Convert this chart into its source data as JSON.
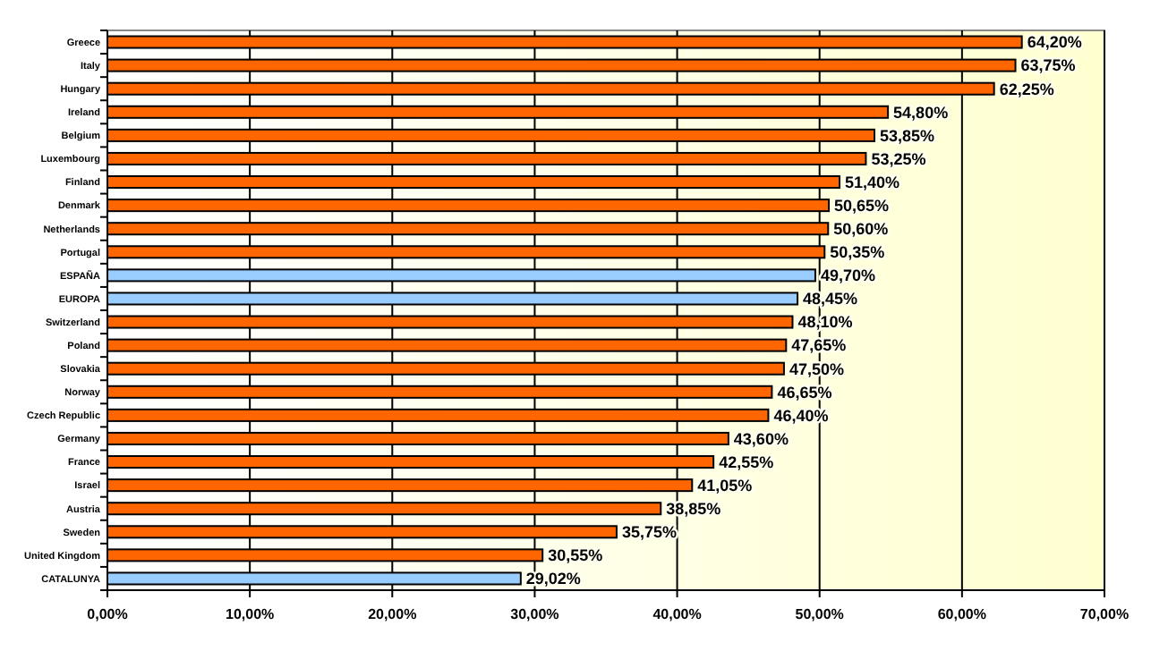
{
  "chart_data": {
    "type": "bar",
    "orientation": "horizontal",
    "categories": [
      "Greece",
      "Italy",
      "Hungary",
      "Ireland",
      "Belgium",
      "Luxembourg",
      "Finland",
      "Denmark",
      "Netherlands",
      "Portugal",
      "ESPAÑA",
      "EUROPA",
      "Switzerland",
      "Poland",
      "Slovakia",
      "Norway",
      "Czech Republic",
      "Germany",
      "France",
      "Israel",
      "Austria",
      "Sweden",
      "United Kingdom",
      "CATALUNYA"
    ],
    "values": [
      64.2,
      63.75,
      62.25,
      54.8,
      53.85,
      53.25,
      51.4,
      50.65,
      50.6,
      50.35,
      49.7,
      48.45,
      48.1,
      47.65,
      47.5,
      46.65,
      46.4,
      43.6,
      42.55,
      41.05,
      38.85,
      35.75,
      30.55,
      29.02
    ],
    "colors": [
      "#ff6600",
      "#ff6600",
      "#ff6600",
      "#ff6600",
      "#ff6600",
      "#ff6600",
      "#ff6600",
      "#ff6600",
      "#ff6600",
      "#ff6600",
      "#99ccff",
      "#99ccff",
      "#ff6600",
      "#ff6600",
      "#ff6600",
      "#ff6600",
      "#ff6600",
      "#ff6600",
      "#ff6600",
      "#ff6600",
      "#ff6600",
      "#ff6600",
      "#ff6600",
      "#99ccff"
    ],
    "value_labels": [
      "64,20%",
      "63,75%",
      "62,25%",
      "54,80%",
      "53,85%",
      "53,25%",
      "51,40%",
      "50,65%",
      "50,60%",
      "50,35%",
      "49,70%",
      "48,45%",
      "48,10%",
      "47,65%",
      "47,50%",
      "46,65%",
      "46,40%",
      "43,60%",
      "42,55%",
      "41,05%",
      "38,85%",
      "35,75%",
      "30,55%",
      "29,02%"
    ],
    "xlim": [
      0,
      70
    ],
    "xticks": [
      {
        "value": 0,
        "label": "0,00%"
      },
      {
        "value": 10,
        "label": "10,00%"
      },
      {
        "value": 20,
        "label": "20,00%"
      },
      {
        "value": 30,
        "label": "30,00%"
      },
      {
        "value": 40,
        "label": "40,00%"
      },
      {
        "value": 50,
        "label": "50,00%"
      },
      {
        "value": 60,
        "label": "60,00%"
      },
      {
        "value": 70,
        "label": "70,00%"
      }
    ],
    "grid": "x"
  }
}
